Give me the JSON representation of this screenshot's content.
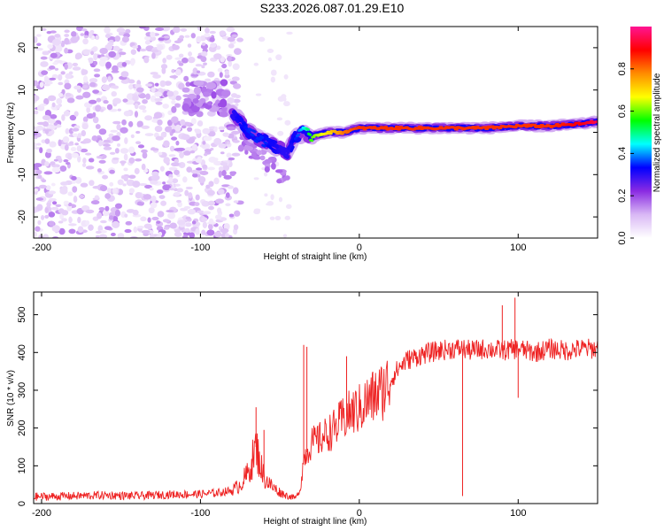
{
  "title": "S233.2026.087.01.29.E10",
  "chart_data": [
    {
      "type": "heatmap",
      "title": "S233.2026.087.01.29.E10",
      "xlabel": "Height of straight line (km)",
      "ylabel": "Frequency (Hz)",
      "xlim": [
        -205,
        150
      ],
      "ylim": [
        -25,
        25
      ],
      "xticks": [
        -200,
        -100,
        0,
        100
      ],
      "yticks": [
        -20,
        -10,
        0,
        10,
        20
      ],
      "colorbar": {
        "label": "Normalized spectral amplitude",
        "range": [
          0,
          1
        ],
        "ticks": [
          0.0,
          0.2,
          0.4,
          0.6,
          0.8
        ],
        "colormap": [
          "#ffffff",
          "#d9b8f5",
          "#8a2be2",
          "#0000ff",
          "#00ffff",
          "#00ff00",
          "#ffff00",
          "#ff8c00",
          "#ff0000",
          "#ff1493"
        ]
      },
      "ridge": {
        "x": [
          -80,
          -70,
          -60,
          -50,
          -45,
          -40,
          -35,
          -30,
          -20,
          -10,
          0,
          20,
          40,
          60,
          80,
          100,
          120,
          140,
          150
        ],
        "frequency": [
          5,
          0,
          -2,
          -4,
          -5,
          -1,
          0,
          -1,
          0,
          0,
          1,
          1,
          1,
          1,
          1,
          1.5,
          1.5,
          2,
          2.5
        ],
        "amplitude": [
          0.3,
          0.35,
          0.35,
          0.3,
          0.3,
          0.35,
          0.45,
          0.6,
          0.7,
          0.8,
          0.85,
          0.85,
          0.85,
          0.85,
          0.85,
          0.85,
          0.85,
          0.9,
          0.95
        ]
      }
    },
    {
      "type": "line",
      "xlabel": "Height of straight line (km)",
      "ylabel": "SNR (10 * v/v)",
      "xlim": [
        -205,
        150
      ],
      "ylim": [
        0,
        560
      ],
      "xticks": [
        -200,
        -100,
        0,
        100
      ],
      "yticks": [
        0,
        100,
        200,
        300,
        400,
        500
      ],
      "series": [
        {
          "name": "SNR",
          "color": "#ee2222",
          "x": [
            -205,
            -180,
            -160,
            -140,
            -120,
            -100,
            -90,
            -80,
            -75,
            -70,
            -67,
            -65,
            -62,
            -60,
            -55,
            -50,
            -45,
            -40,
            -37,
            -35,
            -30,
            -25,
            -20,
            -15,
            -10,
            -5,
            0,
            5,
            10,
            15,
            20,
            25,
            30,
            40,
            50,
            60,
            65,
            70,
            80,
            90,
            100,
            110,
            120,
            130,
            140,
            150
          ],
          "y": [
            18,
            20,
            22,
            20,
            24,
            25,
            28,
            35,
            50,
            80,
            120,
            150,
            100,
            70,
            45,
            30,
            20,
            15,
            40,
            120,
            160,
            170,
            185,
            200,
            225,
            240,
            250,
            270,
            285,
            300,
            330,
            360,
            380,
            395,
            405,
            410,
            410,
            405,
            410,
            405,
            410,
            400,
            410,
            405,
            410,
            410
          ],
          "spikes": [
            {
              "x": -65,
              "y": 255
            },
            {
              "x": -60,
              "y": 195
            },
            {
              "x": -35,
              "y": 420
            },
            {
              "x": -33,
              "y": 415
            },
            {
              "x": -8,
              "y": 390
            },
            {
              "x": 65,
              "y": 20
            },
            {
              "x": 90,
              "y": 525
            },
            {
              "x": 98,
              "y": 545
            },
            {
              "x": 100,
              "y": 280
            }
          ]
        }
      ]
    }
  ]
}
